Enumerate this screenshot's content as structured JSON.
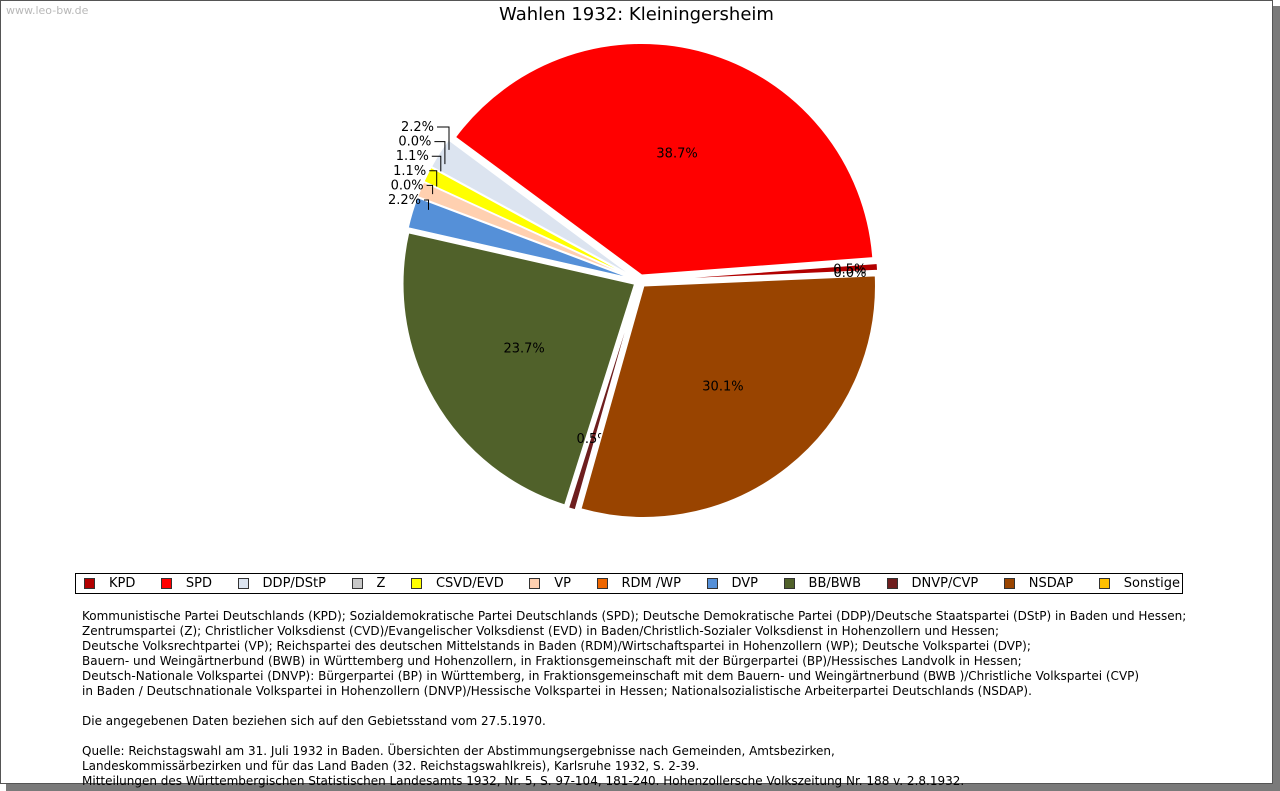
{
  "watermark": "www.leo-bw.de",
  "title": "Wahlen 1932: Kleiningersheim",
  "chart_data": {
    "type": "pie",
    "title": "Wahlen 1932: Kleiningersheim",
    "slices": [
      {
        "name": "KPD",
        "value": 0.5,
        "label": "0.5%",
        "color": "#b20000"
      },
      {
        "name": "SPD",
        "value": 38.7,
        "label": "38.7%",
        "color": "#ff0000"
      },
      {
        "name": "DDP/DStP",
        "value": 2.2,
        "label": "2.2%",
        "color": "#dce4f0"
      },
      {
        "name": "Z",
        "value": 0.0,
        "label": "0.0%",
        "color": "#c8c8c8"
      },
      {
        "name": "CSVD/EVD",
        "value": 1.1,
        "label": "1.1%",
        "color": "#ffff00"
      },
      {
        "name": "VP",
        "value": 1.1,
        "label": "1.1%",
        "color": "#ffd0b0"
      },
      {
        "name": "RDM /WP",
        "value": 0.0,
        "label": "0.0%",
        "color": "#ee6600"
      },
      {
        "name": "DVP",
        "value": 2.2,
        "label": "2.2%",
        "color": "#5590d8"
      },
      {
        "name": "BB/BWB",
        "value": 23.7,
        "label": "23.7%",
        "color": "#50612a"
      },
      {
        "name": "DNVP/CVP",
        "value": 0.5,
        "label": "0.5%",
        "color": "#6e1e1e"
      },
      {
        "name": "NSDAP",
        "value": 30.1,
        "label": "30.1%",
        "color": "#994400"
      },
      {
        "name": "Sonstige",
        "value": 0.0,
        "label": "0.0%",
        "color": "#ffc000"
      }
    ],
    "legend_position": "bottom"
  },
  "notes": {
    "parties": [
      "Kommunistische Partei Deutschlands (KPD); Sozialdemokratische Partei Deutschlands (SPD); Deutsche Demokratische Partei (DDP)/Deutsche Staatspartei (DStP) in Baden und Hessen;",
      "Zentrumspartei (Z); Christlicher Volksdienst (CVD)/Evangelischer Volksdienst (EVD) in Baden/Christlich-Sozialer Volksdienst in Hohenzollern und Hessen;",
      "Deutsche Volksrechtpartei (VP); Reichspartei des deutschen Mittelstands in Baden (RDM)/Wirtschaftspartei in Hohenzollern (WP); Deutsche Volkspartei (DVP);",
      "Bauern- und Weingärtnerbund (BWB) in Württemberg und Hohenzollern, in Fraktionsgemeinschaft mit der Bürgerpartei (BP)/Hessisches Landvolk in Hessen;",
      "Deutsch-Nationale Volkspartei (DNVP): Bürgerpartei (BP) in Württemberg, in Fraktionsgemeinschaft mit dem Bauern- und Weingärtnerbund (BWB )/Christliche Volkspartei (CVP)",
      "in Baden / Deutschnationale Volkspartei in Hohenzollern (DNVP)/Hessische Volkspartei in Hessen; Nationalsozialistische Arbeiterpartei Deutschlands (NSDAP)."
    ],
    "territory": "Die angegebenen Daten beziehen sich auf den Gebietsstand vom 27.5.1970.",
    "source": [
      "Quelle: Reichstagswahl am 31. Juli 1932 in Baden. Übersichten der Abstimmungsergebnisse nach Gemeinden, Amtsbezirken,",
      "Landeskommissärbezirken und für das Land Baden (32. Reichstagswahlkreis), Karlsruhe 1932, S. 2-39.",
      "Mitteilungen des Württembergischen Statistischen Landesamts 1932, Nr. 5, S. 97-104, 181-240. Hohenzollersche Volkszeitung Nr. 188 v. 2.8.1932."
    ]
  }
}
